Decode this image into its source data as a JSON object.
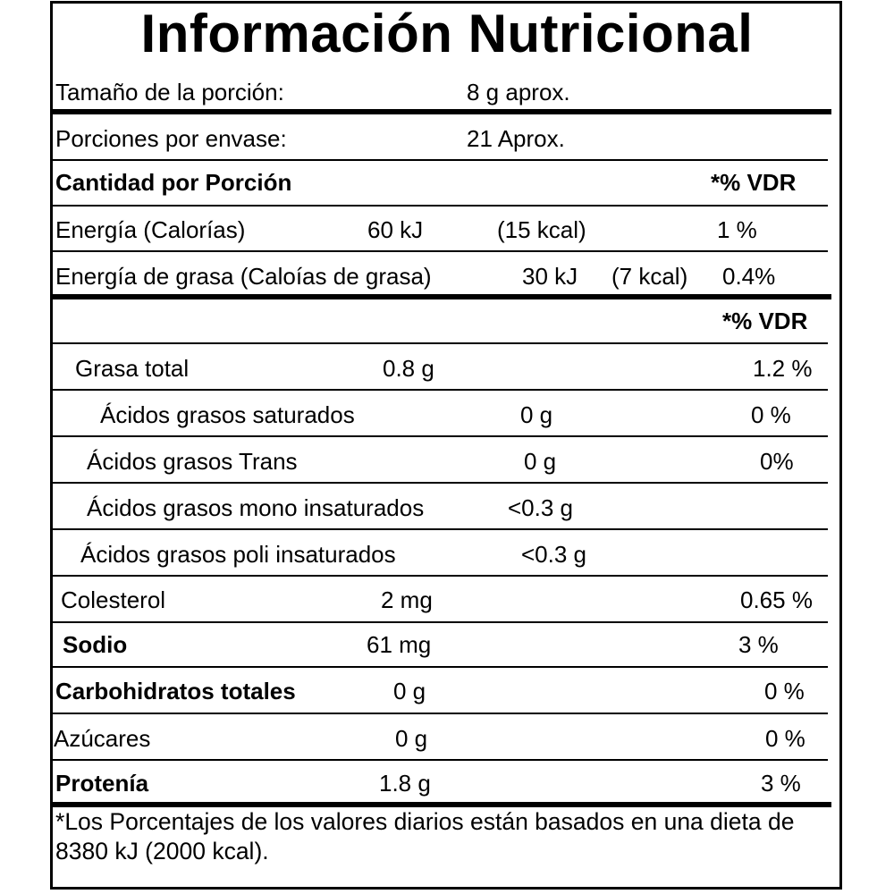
{
  "title": "Información Nutricional",
  "serving": {
    "size_label": "Tamaño de la porción:",
    "size_value": "8 g aprox.",
    "per_container_label": "Porciones por envase:",
    "per_container_value": "21 Aprox."
  },
  "header": {
    "amount_label": "Cantidad por Porción",
    "vdr_label": "*% VDR"
  },
  "energy": {
    "label": "Energía (Calorías)",
    "kj": "60 kJ",
    "kcal": "(15 kcal)",
    "vdr": "1 %"
  },
  "fat_energy": {
    "label": "Energía de grasa (Caloías de grasa)",
    "kj": "30 kJ",
    "kcal": "(7 kcal)",
    "vdr": "0.4%"
  },
  "vdr_header2": "*% VDR",
  "nutrients": {
    "total_fat": {
      "label": "Grasa total",
      "amount": "0.8 g",
      "vdr": "1.2 %"
    },
    "saturated": {
      "label": "Ácidos grasos saturados",
      "amount": "0 g",
      "vdr": "0 %"
    },
    "trans": {
      "label": "Ácidos grasos Trans",
      "amount": "0 g",
      "vdr": "0%"
    },
    "mono": {
      "label": "Ácidos grasos mono insaturados",
      "amount": "<0.3 g"
    },
    "poly": {
      "label": "Ácidos grasos poli insaturados",
      "amount": "<0.3 g"
    },
    "cholesterol": {
      "label": "Colesterol",
      "amount": "2 mg",
      "vdr": "0.65 %"
    },
    "sodium": {
      "label": "Sodio",
      "amount": "61 mg",
      "vdr": "3 %"
    },
    "carbs": {
      "label": "Carbohidratos totales",
      "amount": "0 g",
      "vdr": "0 %"
    },
    "sugars": {
      "label": "Azúcares",
      "amount": "0 g",
      "vdr": "0 %"
    },
    "protein": {
      "label": "Protenía",
      "amount": "1.8 g",
      "vdr": "3 %"
    }
  },
  "footnote": "*Los Porcentajes de los valores diarios están basados en una dieta de 8380 kJ (2000 kcal)."
}
